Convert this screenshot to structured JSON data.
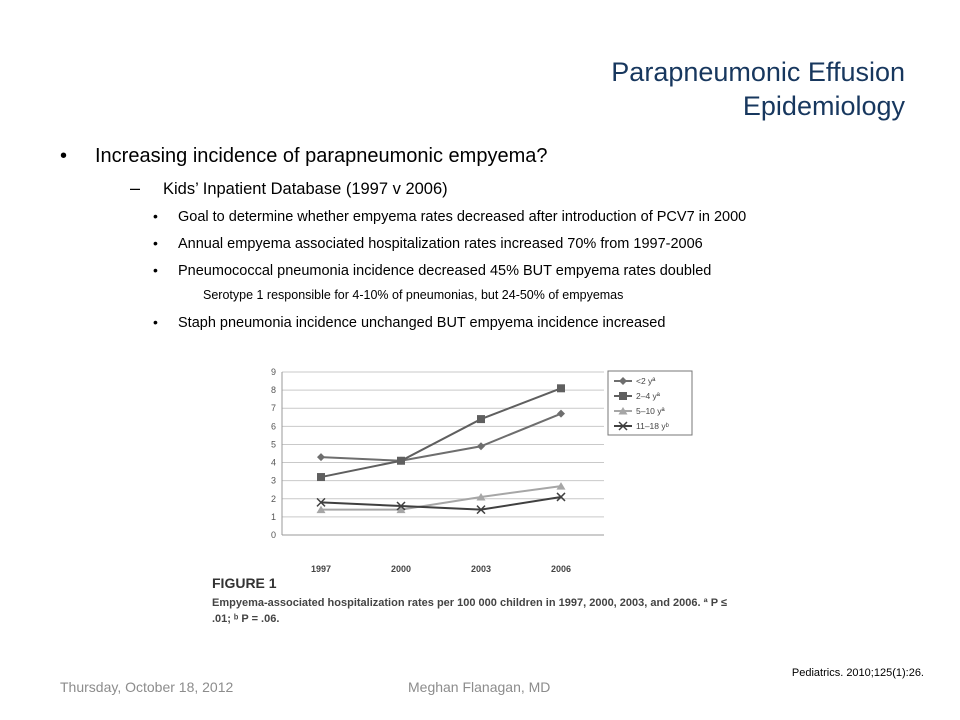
{
  "slide": {
    "title_line1": "Parapneumonic Effusion",
    "title_line2": "Epidemiology",
    "bullet1": "Increasing incidence of parapneumonic empyema?",
    "sub1": "Kids’ Inpatient Database (1997 v 2006)",
    "dash": "–",
    "bullet_char": "•",
    "sub1_items": [
      "Goal to determine whether empyema rates decreased after introduction of PCV7 in 2000",
      "Annual empyema associated hospitalization rates increased 70% from 1997-2006",
      "Pneumococcal pneumonia incidence decreased 45% BUT empyema rates doubled"
    ],
    "sub_sub_text": "Serotype 1 responsible for 4-10% of pneumonias, but 24-50% of empyemas",
    "last_item": "Staph pneumonia incidence unchanged BUT empyema incidence increased",
    "citation": "Pediatrics. 2010;125(1):26.",
    "footer_date": "Thursday, October 18, 2012",
    "footer_author": "Meghan Flanagan, MD"
  },
  "figure": {
    "label": "FIGURE 1",
    "caption_line1": "Empyema-associated hospitalization rates per 100 000 children in 1997, 2000, 2003, and 2006. ª P ≤",
    "caption_line2": ".01; ᵇ P = .06."
  },
  "chart_data": {
    "type": "line",
    "x": [
      "1997",
      "2000",
      "2003",
      "2006"
    ],
    "ylim": [
      0,
      9
    ],
    "yticks": [
      0,
      1,
      2,
      3,
      4,
      5,
      6,
      7,
      8,
      9
    ],
    "grid": "horizontal",
    "legend_position": "right",
    "series": [
      {
        "name": "<2 yª",
        "values": [
          4.3,
          4.1,
          4.9,
          6.7
        ],
        "color": "#6e6e6e",
        "marker": "diamond"
      },
      {
        "name": "2–4 yª",
        "values": [
          3.2,
          4.1,
          6.4,
          8.1
        ],
        "color": "#5f5f5f",
        "marker": "square"
      },
      {
        "name": "5–10 yª",
        "values": [
          1.4,
          1.4,
          2.1,
          2.7
        ],
        "color": "#a6a6a6",
        "marker": "triangle"
      },
      {
        "name": "11–18 yᵇ",
        "values": [
          1.8,
          1.6,
          1.4,
          2.1
        ],
        "color": "#404040",
        "marker": "x"
      }
    ]
  }
}
